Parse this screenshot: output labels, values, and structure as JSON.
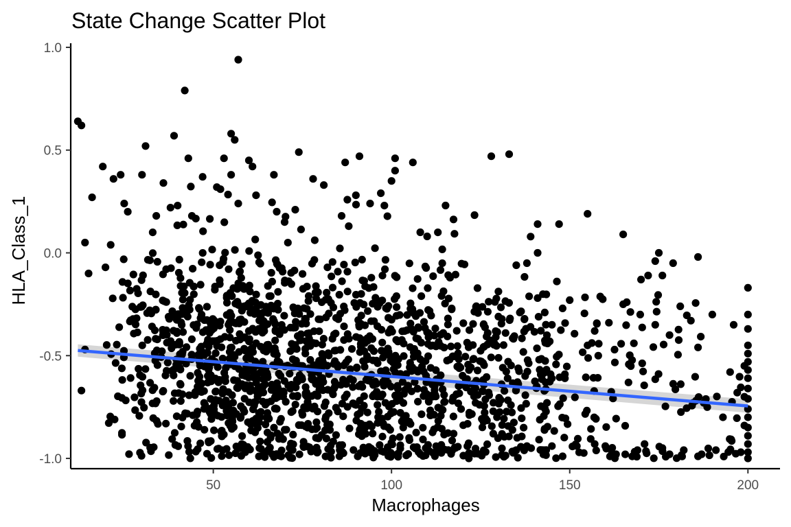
{
  "chart_data": {
    "type": "scatter",
    "title": "State Change Scatter Plot",
    "xlabel": "Macrophages",
    "ylabel": "HLA_Class_1",
    "xlim": [
      10,
      209
    ],
    "ylim": [
      -1.05,
      1.02
    ],
    "x_ticks": [
      50,
      100,
      150,
      200
    ],
    "x_tick_labels": [
      "50",
      "100",
      "150",
      "200"
    ],
    "y_ticks": [
      -1.0,
      -0.5,
      0.0,
      0.5,
      1.0
    ],
    "y_tick_labels": [
      "-1.0",
      "-0.5",
      "0.0",
      "0.5",
      "1.0"
    ],
    "grid": false,
    "legend": "none",
    "point_color": "#000000",
    "trend": {
      "method": "linear regression",
      "color": "#3366ff",
      "band_color": "#999999",
      "x": [
        12,
        200
      ],
      "y": [
        -0.475,
        -0.745
      ],
      "band_halfwidth": [
        0.03,
        0.033
      ]
    },
    "points": [
      [
        12,
        0.64
      ],
      [
        13,
        0.62
      ],
      [
        14,
        0.05
      ],
      [
        15,
        -0.1
      ],
      [
        16,
        0.27
      ],
      [
        13,
        -0.67
      ],
      [
        14,
        -0.47
      ],
      [
        42,
        0.79
      ],
      [
        57,
        0.94
      ],
      [
        39,
        0.57
      ],
      [
        55,
        0.58
      ],
      [
        56,
        0.55
      ],
      [
        31,
        0.52
      ],
      [
        74,
        0.49
      ],
      [
        128,
        0.47
      ],
      [
        133,
        0.48
      ],
      [
        91,
        0.47
      ],
      [
        87,
        0.44
      ],
      [
        101,
        0.46
      ],
      [
        106,
        0.44
      ],
      [
        43,
        0.46
      ],
      [
        53,
        0.46
      ],
      [
        19,
        0.42
      ],
      [
        60,
        0.45
      ],
      [
        61,
        0.42
      ],
      [
        101,
        0.4
      ],
      [
        67,
        0.38
      ],
      [
        55,
        0.38
      ],
      [
        24,
        0.38
      ],
      [
        22,
        0.36
      ],
      [
        30,
        0.38
      ],
      [
        36,
        0.34
      ],
      [
        47,
        0.37
      ],
      [
        78,
        0.36
      ],
      [
        81,
        0.33
      ],
      [
        100,
        0.35
      ],
      [
        97,
        0.29
      ],
      [
        90,
        0.28
      ],
      [
        94,
        0.24
      ],
      [
        98,
        0.23
      ],
      [
        51,
        0.32
      ],
      [
        52,
        0.31
      ],
      [
        38,
        0.22
      ],
      [
        40,
        0.23
      ],
      [
        44,
        0.18
      ],
      [
        57,
        0.24
      ],
      [
        62,
        0.28
      ],
      [
        70,
        0.15
      ],
      [
        73,
        0.21
      ],
      [
        86,
        0.18
      ],
      [
        88,
        0.13
      ],
      [
        25,
        0.24
      ],
      [
        26,
        0.2
      ],
      [
        34,
        0.18
      ],
      [
        33,
        0.1
      ],
      [
        110,
        0.08
      ],
      [
        113,
        0.1
      ],
      [
        141,
        0.14
      ],
      [
        147,
        0.14
      ],
      [
        155,
        0.19
      ],
      [
        165,
        0.09
      ],
      [
        141,
        0.0
      ],
      [
        135,
        -0.06
      ],
      [
        138,
        -0.05
      ],
      [
        175,
        0.0
      ],
      [
        186,
        -0.02
      ],
      [
        179,
        -0.05
      ],
      [
        174,
        -0.04
      ],
      [
        172,
        -0.11
      ],
      [
        176,
        -0.11
      ],
      [
        170,
        -0.13
      ],
      [
        190,
        -0.3
      ],
      [
        181,
        -0.26
      ],
      [
        184,
        -0.33
      ],
      [
        174,
        -0.35
      ],
      [
        178,
        -0.4
      ],
      [
        186,
        -0.46
      ],
      [
        168,
        -0.44
      ],
      [
        165,
        -0.25
      ],
      [
        166,
        -0.24
      ],
      [
        161,
        -0.34
      ],
      [
        157,
        -0.38
      ],
      [
        155,
        -0.45
      ],
      [
        158,
        -0.5
      ],
      [
        150,
        -0.23
      ],
      [
        148,
        -0.27
      ],
      [
        145,
        -0.35
      ],
      [
        143,
        -0.29
      ],
      [
        141,
        -0.22
      ],
      [
        136,
        -0.29
      ],
      [
        139,
        -0.36
      ],
      [
        132,
        -0.39
      ],
      [
        130,
        -0.31
      ],
      [
        127,
        -0.39
      ],
      [
        196,
        -0.35
      ],
      [
        195,
        -0.58
      ],
      [
        197,
        -0.68
      ],
      [
        193,
        -0.8
      ],
      [
        191,
        -0.96
      ],
      [
        198,
        -0.97
      ],
      [
        187,
        -0.98
      ],
      [
        186,
        -0.99
      ],
      [
        182,
        -0.96
      ],
      [
        178,
        -0.98
      ],
      [
        176,
        -0.95
      ],
      [
        171,
        -0.93
      ],
      [
        169,
        -0.96
      ],
      [
        163,
        -0.98
      ],
      [
        160,
        -0.94
      ],
      [
        157,
        -0.93
      ],
      [
        152,
        -0.94
      ],
      [
        148,
        -0.99
      ],
      [
        145,
        -0.94
      ],
      [
        143,
        -0.96
      ],
      [
        138,
        -0.94
      ],
      [
        135,
        -0.96
      ],
      [
        200,
        -0.17
      ],
      [
        200,
        -0.3
      ],
      [
        200,
        -0.37
      ],
      [
        200,
        -0.45
      ],
      [
        200,
        -0.49
      ],
      [
        200,
        -0.53
      ],
      [
        200,
        -0.57
      ],
      [
        200,
        -0.61
      ],
      [
        200,
        -0.66
      ],
      [
        200,
        -0.71
      ],
      [
        200,
        -0.76
      ],
      [
        200,
        -0.8
      ],
      [
        200,
        -0.85
      ],
      [
        200,
        -0.89
      ],
      [
        200,
        -0.93
      ],
      [
        200,
        -0.97
      ],
      [
        200,
        -1.0
      ],
      [
        199,
        -0.55
      ],
      [
        199,
        -0.7
      ],
      [
        199,
        -0.84
      ]
    ]
  }
}
